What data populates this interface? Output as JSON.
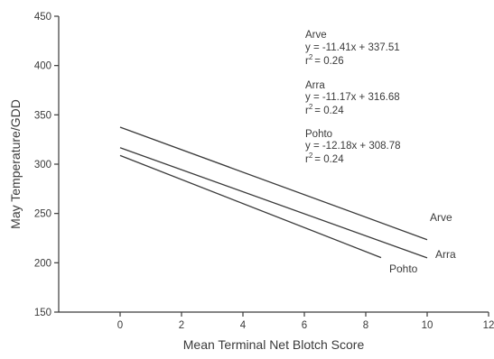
{
  "chart_data": {
    "type": "line",
    "title": "",
    "xlabel": "Mean Terminal Net Blotch Score",
    "ylabel": "May Temperature/GDD",
    "xlim": [
      -2,
      12
    ],
    "ylim": [
      150,
      450
    ],
    "xticks": [
      0,
      2,
      4,
      6,
      8,
      10,
      12
    ],
    "yticks": [
      150,
      200,
      250,
      300,
      350,
      400,
      450
    ],
    "grid": false,
    "series": [
      {
        "name": "Arve",
        "slope": -11.41,
        "intercept": 337.51,
        "x": [
          0,
          10
        ],
        "y": [
          337.51,
          223.41
        ],
        "equation": "y = -11.41x + 337.51",
        "r2_value": "= 0.26",
        "color": "#3a3a3a"
      },
      {
        "name": "Arra",
        "slope": -11.17,
        "intercept": 316.68,
        "x": [
          0,
          10
        ],
        "y": [
          316.68,
          204.98
        ],
        "equation": "y = -11.17x + 316.68",
        "r2_value": "= 0.24",
        "color": "#3a3a3a"
      },
      {
        "name": "Pohto",
        "slope": -12.18,
        "intercept": 308.78,
        "x": [
          0,
          8.5
        ],
        "y": [
          308.78,
          205.25
        ],
        "equation": "y = -12.18x + 308.78",
        "r2_value": "= 0.24",
        "color": "#3a3a3a"
      }
    ],
    "r2_symbol": "r",
    "r2_superscript": "2"
  }
}
